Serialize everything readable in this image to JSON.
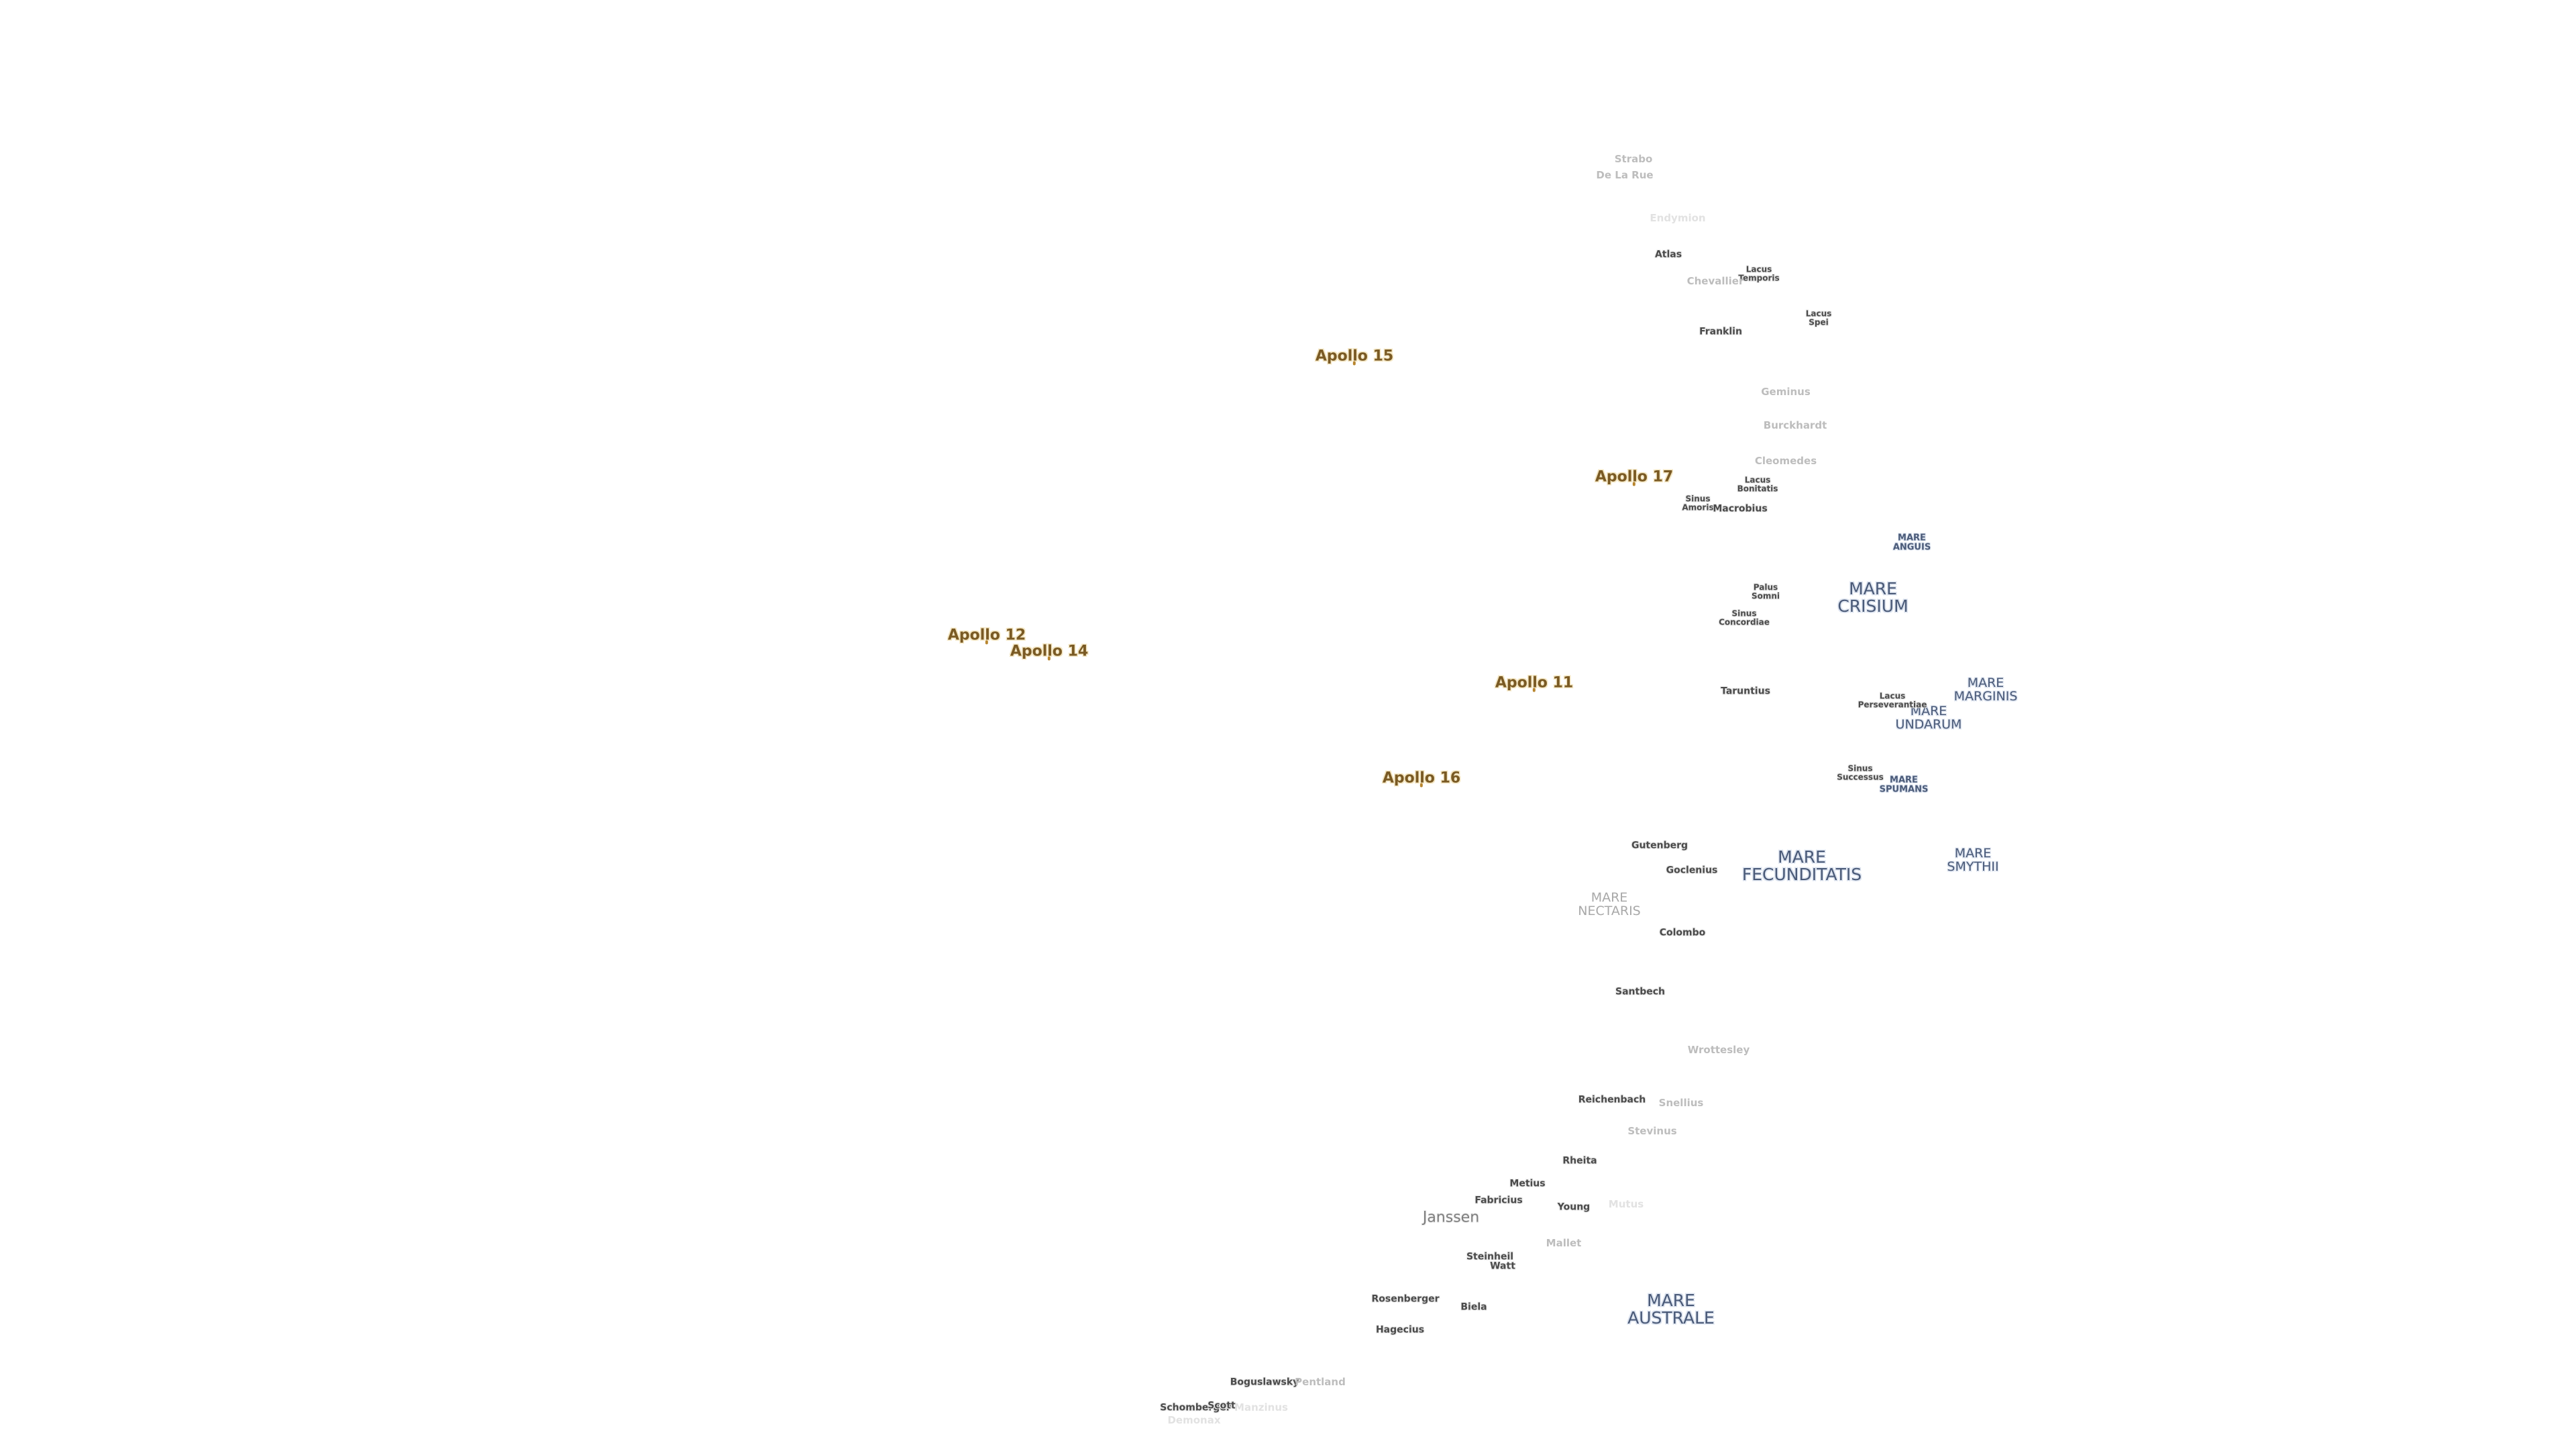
{
  "apollo_sites": [
    {
      "id": "a15",
      "name": "Apollo 15"
    },
    {
      "id": "a17",
      "name": "Apollo 17"
    },
    {
      "id": "a12",
      "name": "Apollo 12"
    },
    {
      "id": "a14",
      "name": "Apollo 14"
    },
    {
      "id": "a11",
      "name": "Apollo 11"
    },
    {
      "id": "a16",
      "name": "Apollo 16"
    }
  ],
  "maria": {
    "crisium": "MARE\nCRISIUM",
    "fecunditatis": "MARE\nFECUNDITATIS",
    "australe": "MARE\nAUSTRALE",
    "nectaris": "MARE\nNECTARIS",
    "smythii": "MARE\nSMYTHII",
    "marginis": "MARE\nMARGINIS",
    "undarum": "MARE\nUNDARUM",
    "spumans": "MARE\nSPUMANS",
    "anguis": "MARE\nANGUIS"
  },
  "lakes_bays_marshes": {
    "lacus_temporis": "Lacus\nTemporis",
    "lacus_spei": "Lacus\nSpei",
    "lacus_bonitatis": "Lacus\nBonitatis",
    "sinus_amoris": "Sinus\nAmoris",
    "palus_somni": "Palus\nSomni",
    "sinus_concordiae": "Sinus\nConcordiae",
    "lacus_perseverantiae": "Lacus\nPerseverantiae",
    "sinus_successus": "Sinus\nSuccessus"
  },
  "craters": {
    "strabo": "Strabo",
    "de_la_rue": "De La Rue",
    "endymion": "Endymion",
    "atlas": "Atlas",
    "chevallier": "Chevallier",
    "franklin": "Franklin",
    "geminus": "Geminus",
    "burckhardt": "Burckhardt",
    "cleomedes": "Cleomedes",
    "macrobius": "Macrobius",
    "taruntius": "Taruntius",
    "gutenberg": "Gutenberg",
    "goclenius": "Goclenius",
    "colombo": "Colombo",
    "santbech": "Santbech",
    "wrottesley": "Wrottesley",
    "reichenbach": "Reichenbach",
    "snellius": "Snellius",
    "stevinus": "Stevinus",
    "rheita": "Rheita",
    "metius": "Metius",
    "fabricius": "Fabricius",
    "young": "Young",
    "janssen": "Janssen",
    "steinheil": "Steinheil",
    "watt": "Watt",
    "mallet": "Mallet",
    "rosenberger": "Rosenberger",
    "biela": "Biela",
    "hagecius": "Hagecius",
    "boguslawsky": "Boguslawsky",
    "pentland": "Pentland",
    "schomberger": "Schomberger",
    "scott": "Scott",
    "manzinus": "Manzinus",
    "mutus": "Mutus",
    "demonax": "Demonax"
  },
  "colors": {
    "background": "#ffffff",
    "apollo_text": "#7a5a24",
    "apollo_halo": "#f4e7c4",
    "mare_text": "#4a5a78",
    "crater_text": "#4a4a4a",
    "faint_text": "#bdbdbd"
  }
}
